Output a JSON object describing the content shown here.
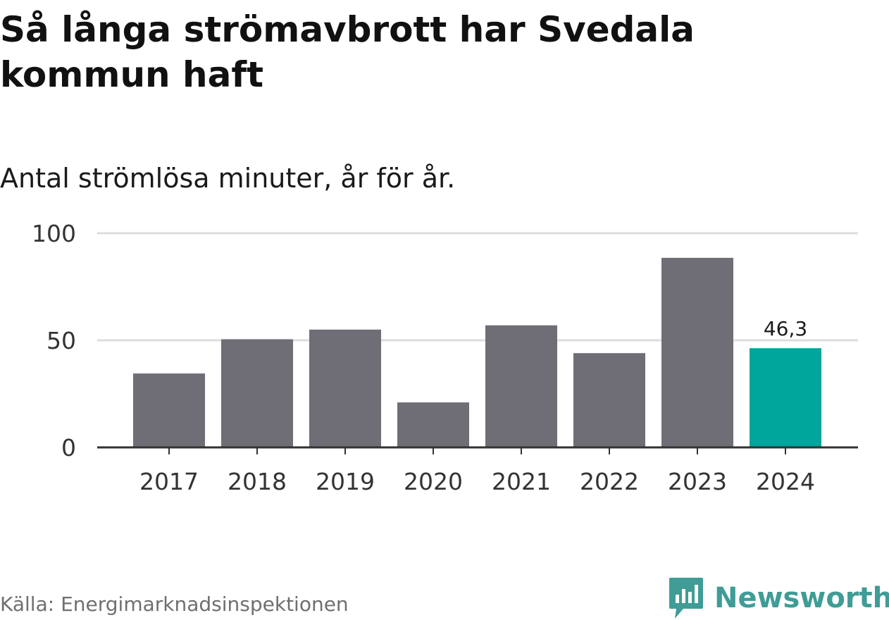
{
  "title": "Så långa strömavbrott har Svedala kommun haft",
  "subtitle": "Antal strömlösa minuter, år för år.",
  "source": "Källa: Energimarknadsinspektionen",
  "brand": {
    "name": "Newsworthy",
    "icon": "newsworthy-logo-icon",
    "color": "#3f9c96"
  },
  "colors": {
    "bar": "#6f6e76",
    "highlight": "#00a59b",
    "grid": "#dddddd",
    "axis": "#333333"
  },
  "chart_data": {
    "type": "bar",
    "categories": [
      "2017",
      "2018",
      "2019",
      "2020",
      "2021",
      "2022",
      "2023",
      "2024"
    ],
    "values": [
      34.5,
      50.5,
      55,
      21,
      57,
      44,
      88.5,
      46.3
    ],
    "highlight_index": 7,
    "data_labels": [
      {
        "index": 7,
        "text": "46,3"
      }
    ],
    "y_ticks": [
      {
        "value": 0,
        "label": "0"
      },
      {
        "value": 50,
        "label": "50"
      },
      {
        "value": 100,
        "label": "100"
      }
    ],
    "ylim": [
      0,
      100
    ],
    "title": "Så långa strömavbrott har Svedala kommun haft",
    "xlabel": "",
    "ylabel": "Antal strömlösa minuter"
  }
}
